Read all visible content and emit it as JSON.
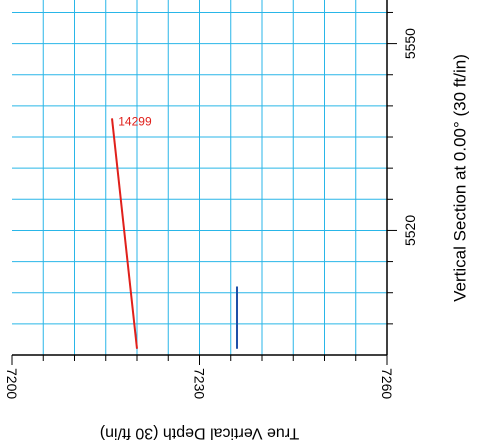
{
  "chart_data": {
    "type": "line",
    "orientation": "rotated-90-clockwise",
    "xlabel": "True Vertical Depth (30 ft/in)",
    "ylabel": "Vertical Section at 0.00° (30 ft/in)",
    "xlim": [
      7200,
      7260
    ],
    "ylim": [
      5500,
      5557
    ],
    "x_ticks": [
      "7200",
      "7230",
      "7260"
    ],
    "y_ticks": [
      "5520",
      "5550"
    ],
    "grid": true,
    "grid_color": "#29b6e8",
    "series": [
      {
        "name": "14299",
        "color": "#e0201b",
        "points": [
          [
            7216,
            5538
          ],
          [
            7220,
            5501
          ]
        ]
      },
      {
        "name": "",
        "color": "#1f4fa8",
        "points": [
          [
            7236,
            5511
          ],
          [
            7236,
            5501
          ]
        ]
      }
    ],
    "annotations": [
      {
        "text": "14299",
        "x": 7217,
        "y": 5537.5,
        "color": "#e0201b"
      }
    ]
  }
}
